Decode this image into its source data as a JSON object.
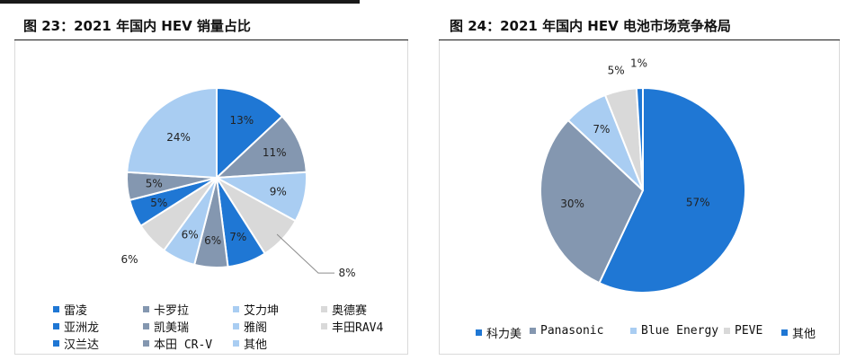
{
  "headers": {
    "left": "图 23：2021 年国内 HEV 销量占比",
    "right": "图 24：2021 年国内 HEV 电池市场竞争格局"
  },
  "chart_data": [
    {
      "type": "pie",
      "title": "图 23：2021 年国内 HEV 销量占比",
      "slices": [
        {
          "name": "雷凌",
          "value": 13,
          "label": "13%",
          "color": "#1f77d4"
        },
        {
          "name": "卡罗拉",
          "value": 11,
          "label": "11%",
          "color": "#8497b0"
        },
        {
          "name": "艾力坤",
          "value": 9,
          "label": "9%",
          "color": "#a9cdf2"
        },
        {
          "name": "奥德赛",
          "value": 8,
          "label": "8%",
          "color": "#d9d9d9"
        },
        {
          "name": "亚洲龙",
          "value": 7,
          "label": "7%",
          "color": "#1f77d4"
        },
        {
          "name": "凯美瑞",
          "value": 6,
          "label": "6%",
          "color": "#8497b0"
        },
        {
          "name": "雅阁",
          "value": 6,
          "label": "6%",
          "color": "#a9cdf2"
        },
        {
          "name": "丰田RAV4",
          "value": 6,
          "label": "6%",
          "color": "#d9d9d9"
        },
        {
          "name": "汉兰达",
          "value": 5,
          "label": "5%",
          "color": "#1f77d4"
        },
        {
          "name": "本田 CR-V",
          "value": 5,
          "label": "5%",
          "color": "#8497b0"
        },
        {
          "name": "其他",
          "value": 24,
          "label": "24%",
          "color": "#a9cdf2"
        }
      ],
      "legend_position": "bottom"
    },
    {
      "type": "pie",
      "title": "图 24：2021 年国内 HEV 电池市场竞争格局",
      "slices": [
        {
          "name": "科力美",
          "value": 57,
          "label": "57%",
          "color": "#1f77d4"
        },
        {
          "name": "Panasonic",
          "value": 30,
          "label": "30%",
          "color": "#8497b0"
        },
        {
          "name": "Blue Energy",
          "value": 7,
          "label": "7%",
          "color": "#a9cdf2"
        },
        {
          "name": "PEVE",
          "value": 5,
          "label": "5%",
          "color": "#d9d9d9"
        },
        {
          "name": "其他",
          "value": 1,
          "label": "1%",
          "color": "#1f77d4"
        }
      ],
      "legend_position": "bottom"
    }
  ]
}
